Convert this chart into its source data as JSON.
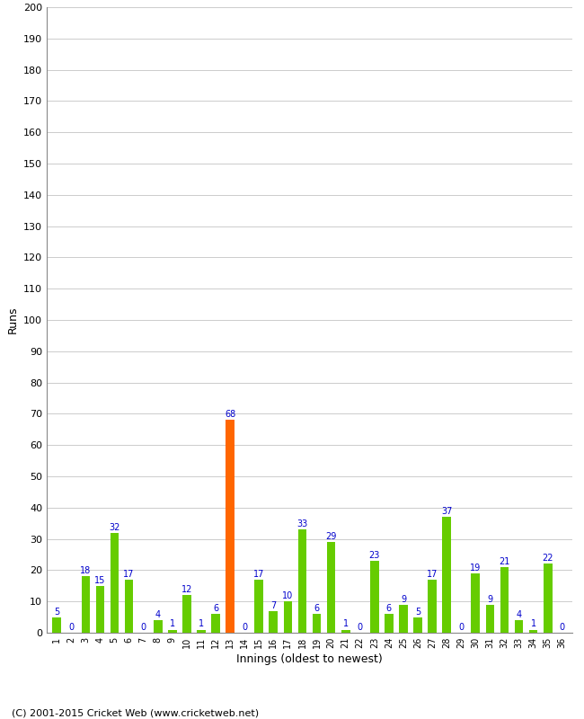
{
  "xlabel": "Innings (oldest to newest)",
  "ylabel": "Runs",
  "values": [
    5,
    0,
    18,
    15,
    32,
    17,
    0,
    4,
    1,
    12,
    1,
    6,
    68,
    0,
    17,
    7,
    10,
    33,
    6,
    29,
    1,
    0,
    23,
    6,
    9,
    5,
    17,
    37,
    0,
    19,
    9,
    21,
    4,
    1,
    22,
    0
  ],
  "innings": [
    1,
    2,
    3,
    4,
    5,
    6,
    7,
    8,
    9,
    10,
    11,
    12,
    13,
    14,
    15,
    16,
    17,
    18,
    19,
    20,
    21,
    22,
    23,
    24,
    25,
    26,
    27,
    28,
    29,
    30,
    31,
    32,
    33,
    34,
    35,
    36
  ],
  "highlight_index": 12,
  "bar_color_normal": "#66cc00",
  "bar_color_highlight": "#ff6600",
  "label_color": "#0000cc",
  "ylim": [
    0,
    200
  ],
  "yticks": [
    0,
    10,
    20,
    30,
    40,
    50,
    60,
    70,
    80,
    90,
    100,
    110,
    120,
    130,
    140,
    150,
    160,
    170,
    180,
    190,
    200
  ],
  "grid_color": "#cccccc",
  "bg_color": "#ffffff",
  "footer": "(C) 2001-2015 Cricket Web (www.cricketweb.net)",
  "label_fontsize": 8,
  "tick_fontsize": 7,
  "footer_fontsize": 8,
  "value_label_fontsize": 7
}
